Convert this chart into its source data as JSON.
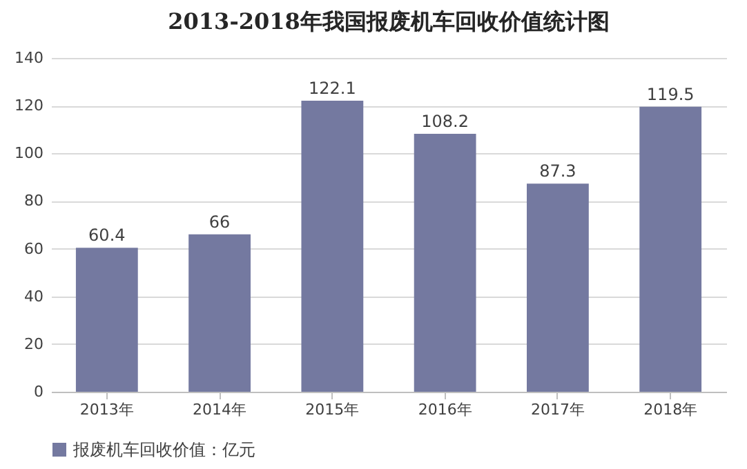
{
  "chart_data": {
    "type": "bar",
    "title": "2013-2018年我国报废机车回收价值统计图",
    "categories": [
      "2013年",
      "2014年",
      "2015年",
      "2016年",
      "2017年",
      "2018年"
    ],
    "series": [
      {
        "name": "报废机车回收价值：亿元",
        "color": "#7479a0",
        "values": [
          60.4,
          66,
          122.1,
          108.2,
          87.3,
          119.5
        ]
      }
    ],
    "ylim": [
      0,
      140
    ],
    "yticks": [
      0,
      20,
      40,
      60,
      80,
      100,
      120,
      140
    ],
    "grid": "y",
    "legend": "bottom",
    "data_labels": true
  }
}
